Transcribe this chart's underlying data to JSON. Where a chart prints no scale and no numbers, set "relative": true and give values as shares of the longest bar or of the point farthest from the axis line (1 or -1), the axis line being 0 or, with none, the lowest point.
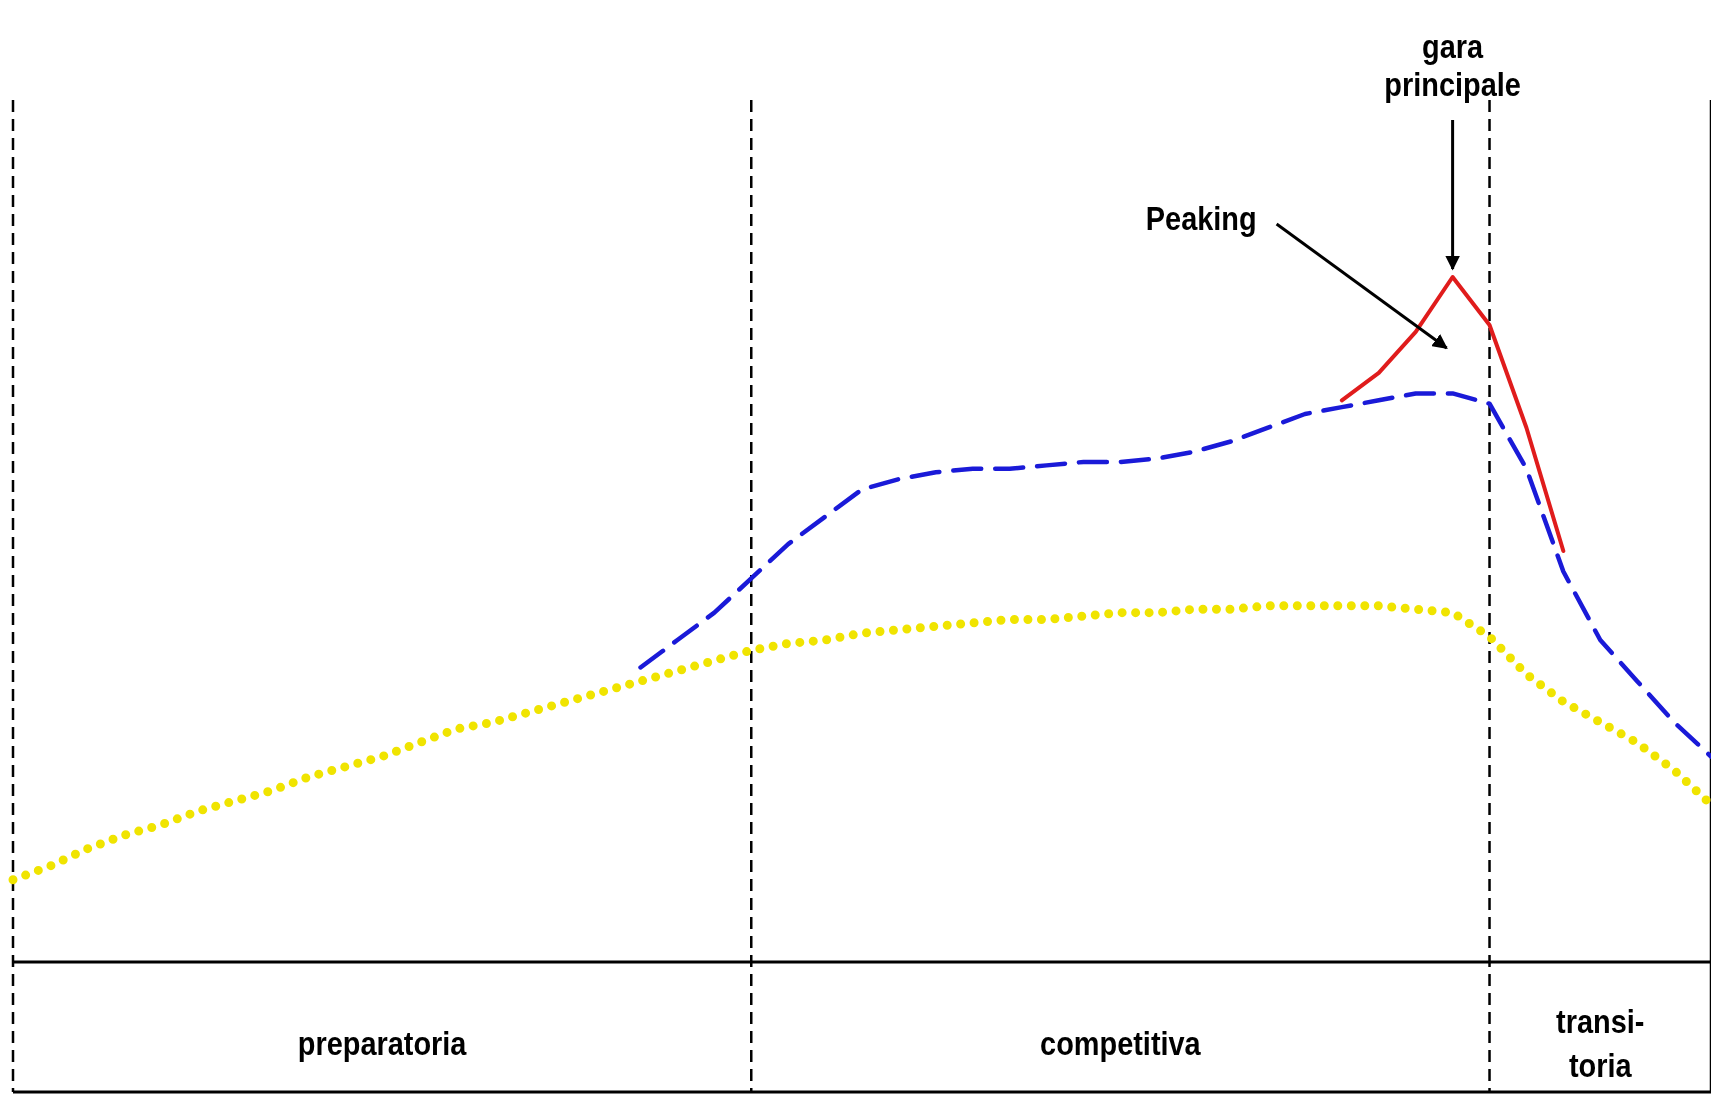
{
  "chart_data": {
    "type": "line",
    "relative": true,
    "categories": [
      null,
      null,
      null,
      null,
      null,
      null,
      null,
      null,
      null,
      null,
      null,
      null,
      null,
      null,
      null,
      null,
      null,
      null,
      null,
      null,
      null,
      null,
      null,
      null,
      null,
      null,
      null,
      null,
      null,
      null,
      null,
      null,
      null,
      null,
      null,
      null,
      null,
      null,
      null,
      null,
      null,
      null,
      null,
      null,
      null,
      null,
      null
    ],
    "series": [
      {
        "color": "#f0e400",
        "line_style": "dotted",
        "values": [
          0.12,
          0.14,
          0.165,
          0.185,
          0.2,
          0.22,
          0.235,
          0.25,
          0.27,
          0.285,
          0.3,
          0.32,
          0.34,
          0.35,
          0.365,
          0.38,
          0.395,
          0.41,
          0.425,
          0.44,
          0.455,
          0.465,
          0.47,
          0.48,
          0.485,
          0.49,
          0.495,
          0.5,
          0.5,
          0.505,
          0.51,
          0.51,
          0.515,
          0.515,
          0.52,
          0.52,
          0.52,
          0.52,
          0.515,
          0.51,
          0.475,
          0.42,
          0.38,
          0.35,
          0.32,
          0.28,
          0.23
        ]
      },
      {
        "color": "#1a1ad8",
        "line_style": "dashed",
        "values": [
          null,
          null,
          null,
          null,
          null,
          null,
          null,
          null,
          null,
          null,
          null,
          null,
          null,
          null,
          null,
          null,
          null,
          0.43,
          0.47,
          0.51,
          0.56,
          0.61,
          0.65,
          0.69,
          0.705,
          0.715,
          0.72,
          0.72,
          0.725,
          0.73,
          0.73,
          0.735,
          0.745,
          0.76,
          0.78,
          0.8,
          0.81,
          0.82,
          0.83,
          0.83,
          0.815,
          0.72,
          0.57,
          0.47,
          0.41,
          0.35,
          0.3
        ]
      },
      {
        "color": "#e01c1c",
        "line_style": "solid",
        "values": [
          null,
          null,
          null,
          null,
          null,
          null,
          null,
          null,
          null,
          null,
          null,
          null,
          null,
          null,
          null,
          null,
          null,
          null,
          null,
          null,
          null,
          null,
          null,
          null,
          null,
          null,
          null,
          null,
          null,
          null,
          null,
          null,
          null,
          null,
          null,
          null,
          0.82,
          0.86,
          0.92,
          1.0,
          0.93,
          0.78,
          0.6,
          null,
          null,
          null,
          null
        ]
      }
    ],
    "annotations": [
      "Peaking",
      "gara\nprincipale",
      "preparatoria",
      "competitiva",
      "transi-\ntoria"
    ]
  }
}
